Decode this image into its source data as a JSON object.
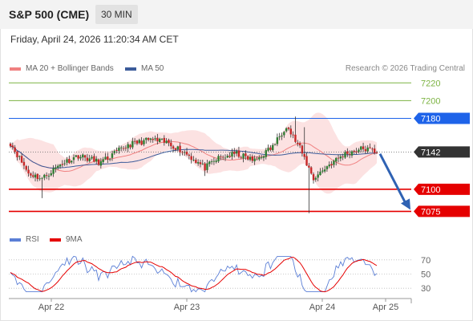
{
  "header": {
    "title": "S&P 500 (CME)",
    "timeframe": "30 MIN",
    "timestamp": "Friday, April 24, 2026 11:20:34 AM CET"
  },
  "credit": "Research © 2026 Trading Central",
  "colors": {
    "up": "#2e7d32",
    "down": "#c62828",
    "ma20": "#f08080",
    "band": "#fbd5d5",
    "ma50": "#3b5b9a",
    "resistance": "#7cb342",
    "pivot": "#1e63e9",
    "support": "#e50000",
    "arrow": "#2f62b3",
    "rsi": "#5b7fd6",
    "rsi_ma": "#e50000",
    "last": "#333333"
  },
  "chart_data": [
    {
      "type": "candlestick",
      "legend": [
        {
          "label": "MA 20 + Bollinger Bands",
          "color": "#f08080"
        },
        {
          "label": "MA 50",
          "color": "#3b5b9a"
        }
      ],
      "ylim": [
        7060,
        7232
      ],
      "x_ticks": [
        "Apr 22",
        "Apr 23",
        "Apr 24",
        "Apr 25"
      ],
      "levels": [
        {
          "value": 7220,
          "label": "7220",
          "kind": "resistance"
        },
        {
          "value": 7200,
          "label": "7200",
          "kind": "resistance"
        },
        {
          "value": 7180,
          "label": "7180",
          "kind": "pivot"
        },
        {
          "value": 7142,
          "label": "7142",
          "kind": "last"
        },
        {
          "value": 7100,
          "label": "7100",
          "kind": "support"
        },
        {
          "value": 7075,
          "label": "7075",
          "kind": "support"
        }
      ],
      "projection": {
        "from": 7140,
        "to": 7075
      }
    },
    {
      "type": "line",
      "legend": [
        {
          "label": "RSI",
          "color": "#5b7fd6"
        },
        {
          "label": "9MA",
          "color": "#e50000"
        }
      ],
      "y_ticks": [
        70,
        50,
        30
      ],
      "ylim": [
        20,
        80
      ]
    }
  ]
}
